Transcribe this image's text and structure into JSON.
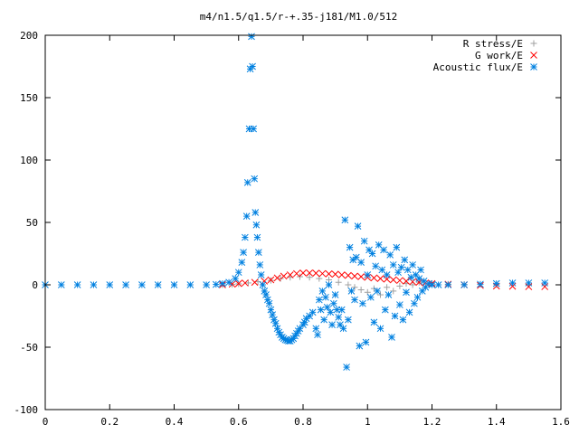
{
  "chart_data": {
    "type": "scatter",
    "title": "m4/n1.5/q1.5/r-+.35-j181/M1.0/512",
    "xlabel": "",
    "ylabel": "",
    "xlim": [
      0,
      1.6
    ],
    "ylim": [
      -100,
      200
    ],
    "xticks": [
      0,
      0.2,
      0.4,
      0.6,
      0.8,
      1,
      1.2,
      1.4,
      1.6
    ],
    "xtick_labels": [
      "0",
      "0.2",
      "0.4",
      "0.6",
      "0.8",
      "1",
      "1.2",
      "1.4",
      "1.6"
    ],
    "yticks": [
      -100,
      -50,
      0,
      50,
      100,
      150,
      200
    ],
    "ytick_labels": [
      "-100",
      "-50",
      "0",
      "50",
      "100",
      "150",
      "200"
    ],
    "grid": false,
    "legend_position": "top-right",
    "series": [
      {
        "name": "R stress/E",
        "marker": "plus",
        "color": "#a0a0a0",
        "points": [
          [
            0.5,
            0
          ],
          [
            0.55,
            0
          ],
          [
            0.58,
            0.3
          ],
          [
            0.6,
            0.8
          ],
          [
            0.63,
            1.5
          ],
          [
            0.66,
            2.5
          ],
          [
            0.7,
            3.5
          ],
          [
            0.73,
            5
          ],
          [
            0.76,
            6
          ],
          [
            0.79,
            6.5
          ],
          [
            0.82,
            6
          ],
          [
            0.85,
            5
          ],
          [
            0.88,
            4
          ],
          [
            0.91,
            2
          ],
          [
            0.94,
            0
          ],
          [
            0.96,
            -2
          ],
          [
            0.98,
            -4
          ],
          [
            1.0,
            -6
          ],
          [
            1.02,
            -3
          ],
          [
            1.04,
            -8
          ],
          [
            1.06,
            -2
          ],
          [
            1.08,
            -5
          ],
          [
            1.1,
            -1
          ],
          [
            1.12,
            1
          ],
          [
            1.14,
            0
          ],
          [
            1.16,
            2
          ],
          [
            1.2,
            1
          ],
          [
            1.25,
            0.5
          ],
          [
            1.3,
            0.3
          ],
          [
            1.4,
            0.2
          ],
          [
            1.5,
            0.1
          ]
        ]
      },
      {
        "name": "G work/E",
        "marker": "cross",
        "color": "#ff0000",
        "points": [
          [
            0.55,
            0
          ],
          [
            0.58,
            0.5
          ],
          [
            0.6,
            1
          ],
          [
            0.62,
            1.5
          ],
          [
            0.65,
            2
          ],
          [
            0.68,
            3
          ],
          [
            0.7,
            4
          ],
          [
            0.72,
            5.5
          ],
          [
            0.74,
            7
          ],
          [
            0.76,
            8
          ],
          [
            0.78,
            9
          ],
          [
            0.8,
            9.5
          ],
          [
            0.82,
            9.5
          ],
          [
            0.84,
            9.3
          ],
          [
            0.86,
            9
          ],
          [
            0.88,
            8.8
          ],
          [
            0.9,
            8.5
          ],
          [
            0.92,
            8
          ],
          [
            0.94,
            7.5
          ],
          [
            0.96,
            7
          ],
          [
            0.98,
            6.5
          ],
          [
            1.0,
            6
          ],
          [
            1.02,
            5.5
          ],
          [
            1.04,
            5
          ],
          [
            1.06,
            4.5
          ],
          [
            1.08,
            4
          ],
          [
            1.1,
            3.5
          ],
          [
            1.12,
            3
          ],
          [
            1.14,
            2.5
          ],
          [
            1.16,
            2
          ],
          [
            1.18,
            1.5
          ],
          [
            1.2,
            1
          ],
          [
            1.25,
            0.5
          ],
          [
            1.3,
            0
          ],
          [
            1.35,
            -0.5
          ],
          [
            1.4,
            -1
          ],
          [
            1.45,
            -1.2
          ],
          [
            1.5,
            -1.5
          ],
          [
            1.55,
            -1.5
          ]
        ]
      },
      {
        "name": "Acoustic flux/E",
        "marker": "star",
        "color": "#0080e0",
        "points": [
          [
            0.0,
            0
          ],
          [
            0.05,
            0
          ],
          [
            0.1,
            0
          ],
          [
            0.15,
            0
          ],
          [
            0.2,
            0
          ],
          [
            0.25,
            0
          ],
          [
            0.3,
            0
          ],
          [
            0.35,
            0
          ],
          [
            0.4,
            0
          ],
          [
            0.45,
            0
          ],
          [
            0.5,
            0
          ],
          [
            0.53,
            0.3
          ],
          [
            0.55,
            1
          ],
          [
            0.57,
            2
          ],
          [
            0.59,
            5
          ],
          [
            0.6,
            10
          ],
          [
            0.61,
            18
          ],
          [
            0.615,
            26
          ],
          [
            0.62,
            38
          ],
          [
            0.625,
            55
          ],
          [
            0.628,
            82
          ],
          [
            0.633,
            125
          ],
          [
            0.636,
            173
          ],
          [
            0.64,
            199
          ],
          [
            0.643,
            175
          ],
          [
            0.646,
            125
          ],
          [
            0.649,
            85
          ],
          [
            0.652,
            58
          ],
          [
            0.655,
            48
          ],
          [
            0.658,
            38
          ],
          [
            0.662,
            26
          ],
          [
            0.666,
            16
          ],
          [
            0.67,
            8
          ],
          [
            0.675,
            0
          ],
          [
            0.68,
            -5
          ],
          [
            0.685,
            -8
          ],
          [
            0.69,
            -12
          ],
          [
            0.695,
            -15
          ],
          [
            0.7,
            -20
          ],
          [
            0.705,
            -24
          ],
          [
            0.71,
            -28
          ],
          [
            0.715,
            -31
          ],
          [
            0.72,
            -35
          ],
          [
            0.725,
            -38
          ],
          [
            0.73,
            -40
          ],
          [
            0.735,
            -42
          ],
          [
            0.74,
            -43
          ],
          [
            0.745,
            -44
          ],
          [
            0.75,
            -44.5
          ],
          [
            0.755,
            -45
          ],
          [
            0.76,
            -45
          ],
          [
            0.765,
            -44
          ],
          [
            0.77,
            -43
          ],
          [
            0.775,
            -41
          ],
          [
            0.78,
            -39
          ],
          [
            0.785,
            -37
          ],
          [
            0.79,
            -35
          ],
          [
            0.8,
            -32
          ],
          [
            0.805,
            -30
          ],
          [
            0.81,
            -27
          ],
          [
            0.82,
            -25
          ],
          [
            0.83,
            -22
          ],
          [
            0.84,
            -35
          ],
          [
            0.845,
            -40
          ],
          [
            0.85,
            -12
          ],
          [
            0.855,
            -20
          ],
          [
            0.86,
            -5
          ],
          [
            0.865,
            -28
          ],
          [
            0.87,
            -10
          ],
          [
            0.875,
            -18
          ],
          [
            0.88,
            0
          ],
          [
            0.885,
            -22
          ],
          [
            0.89,
            -32
          ],
          [
            0.895,
            -15
          ],
          [
            0.9,
            -8
          ],
          [
            0.905,
            -20
          ],
          [
            0.91,
            -26
          ],
          [
            0.915,
            -32
          ],
          [
            0.92,
            -20
          ],
          [
            0.925,
            -35
          ],
          [
            0.93,
            52
          ],
          [
            0.935,
            -66
          ],
          [
            0.94,
            -28
          ],
          [
            0.945,
            30
          ],
          [
            0.95,
            -5
          ],
          [
            0.955,
            20
          ],
          [
            0.96,
            -12
          ],
          [
            0.965,
            22
          ],
          [
            0.97,
            47
          ],
          [
            0.975,
            -49
          ],
          [
            0.98,
            18
          ],
          [
            0.985,
            -15
          ],
          [
            0.99,
            35
          ],
          [
            0.995,
            -46
          ],
          [
            1.0,
            8
          ],
          [
            1.005,
            28
          ],
          [
            1.01,
            -10
          ],
          [
            1.015,
            25
          ],
          [
            1.02,
            -30
          ],
          [
            1.025,
            15
          ],
          [
            1.03,
            -5
          ],
          [
            1.035,
            32
          ],
          [
            1.04,
            -35
          ],
          [
            1.045,
            12
          ],
          [
            1.05,
            28
          ],
          [
            1.055,
            -20
          ],
          [
            1.06,
            8
          ],
          [
            1.065,
            -8
          ],
          [
            1.07,
            24
          ],
          [
            1.075,
            -42
          ],
          [
            1.08,
            16
          ],
          [
            1.085,
            -25
          ],
          [
            1.09,
            30
          ],
          [
            1.095,
            10
          ],
          [
            1.1,
            -16
          ],
          [
            1.105,
            14
          ],
          [
            1.11,
            -28
          ],
          [
            1.115,
            20
          ],
          [
            1.12,
            -6
          ],
          [
            1.125,
            12
          ],
          [
            1.13,
            -22
          ],
          [
            1.135,
            6
          ],
          [
            1.14,
            16
          ],
          [
            1.145,
            -15
          ],
          [
            1.15,
            8
          ],
          [
            1.155,
            -10
          ],
          [
            1.16,
            5
          ],
          [
            1.165,
            12
          ],
          [
            1.17,
            -5
          ],
          [
            1.175,
            3
          ],
          [
            1.18,
            -2
          ],
          [
            1.19,
            1
          ],
          [
            1.2,
            0
          ],
          [
            1.22,
            0
          ],
          [
            1.25,
            0
          ],
          [
            1.3,
            0
          ],
          [
            1.35,
            0.5
          ],
          [
            1.4,
            1
          ],
          [
            1.45,
            1.5
          ],
          [
            1.5,
            1.5
          ],
          [
            1.55,
            1.5
          ]
        ]
      }
    ]
  }
}
